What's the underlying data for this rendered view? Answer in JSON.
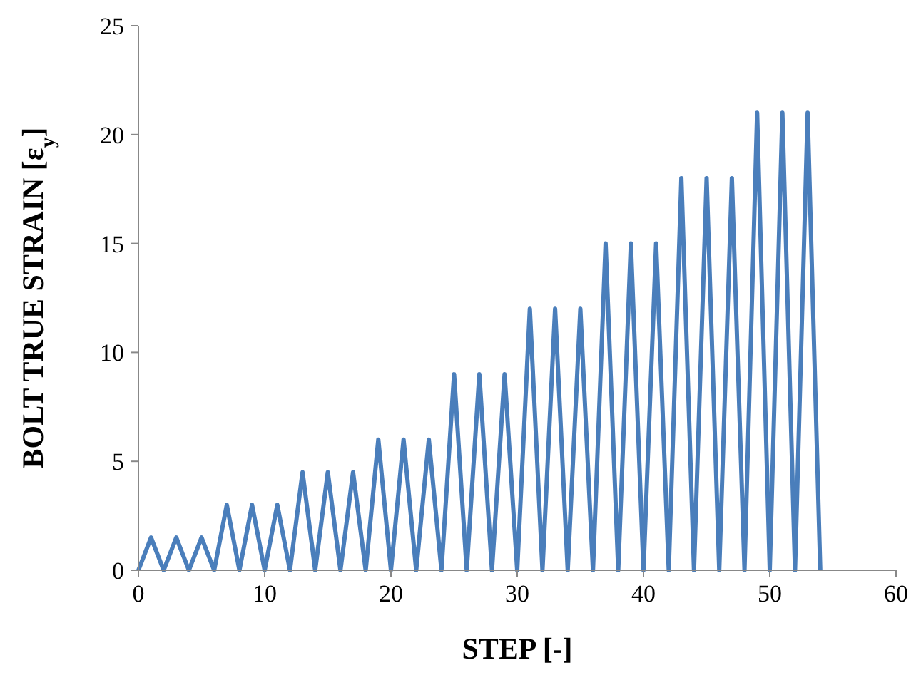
{
  "chart_data": {
    "type": "line",
    "xlabel": "STEP [-]",
    "ylabel": "BOLT TRUE STRAIN [ε$_{y}$]",
    "x": [
      0,
      1,
      2,
      3,
      4,
      5,
      6,
      7,
      8,
      9,
      10,
      11,
      12,
      13,
      14,
      15,
      16,
      17,
      18,
      19,
      20,
      21,
      22,
      23,
      24,
      25,
      26,
      27,
      28,
      29,
      30,
      31,
      32,
      33,
      34,
      35,
      36,
      37,
      38,
      39,
      40,
      41,
      42,
      43,
      44,
      45,
      46,
      47,
      48,
      49,
      50,
      51,
      52,
      53,
      54
    ],
    "series": [
      {
        "color": "#4a7ebb",
        "values": [
          0,
          1.5,
          0,
          1.5,
          0,
          1.5,
          0,
          3,
          0,
          3,
          0,
          3,
          0,
          4.5,
          0,
          4.5,
          0,
          4.5,
          0,
          6,
          0,
          6,
          0,
          6,
          0,
          9,
          0,
          9,
          0,
          9,
          0,
          12,
          0,
          12,
          0,
          12,
          0,
          15,
          0,
          15,
          0,
          15,
          0,
          18,
          0,
          18,
          0,
          18,
          0,
          21,
          0,
          21,
          0,
          21,
          0
        ]
      }
    ],
    "xlim": [
      0,
      60
    ],
    "xticks": [
      0,
      10,
      20,
      30,
      40,
      50,
      60
    ],
    "ylim": [
      0,
      25
    ],
    "yticks": [
      0,
      5,
      10,
      15,
      20,
      25
    ],
    "grid": false,
    "marker": "none",
    "line_style": "solid"
  }
}
